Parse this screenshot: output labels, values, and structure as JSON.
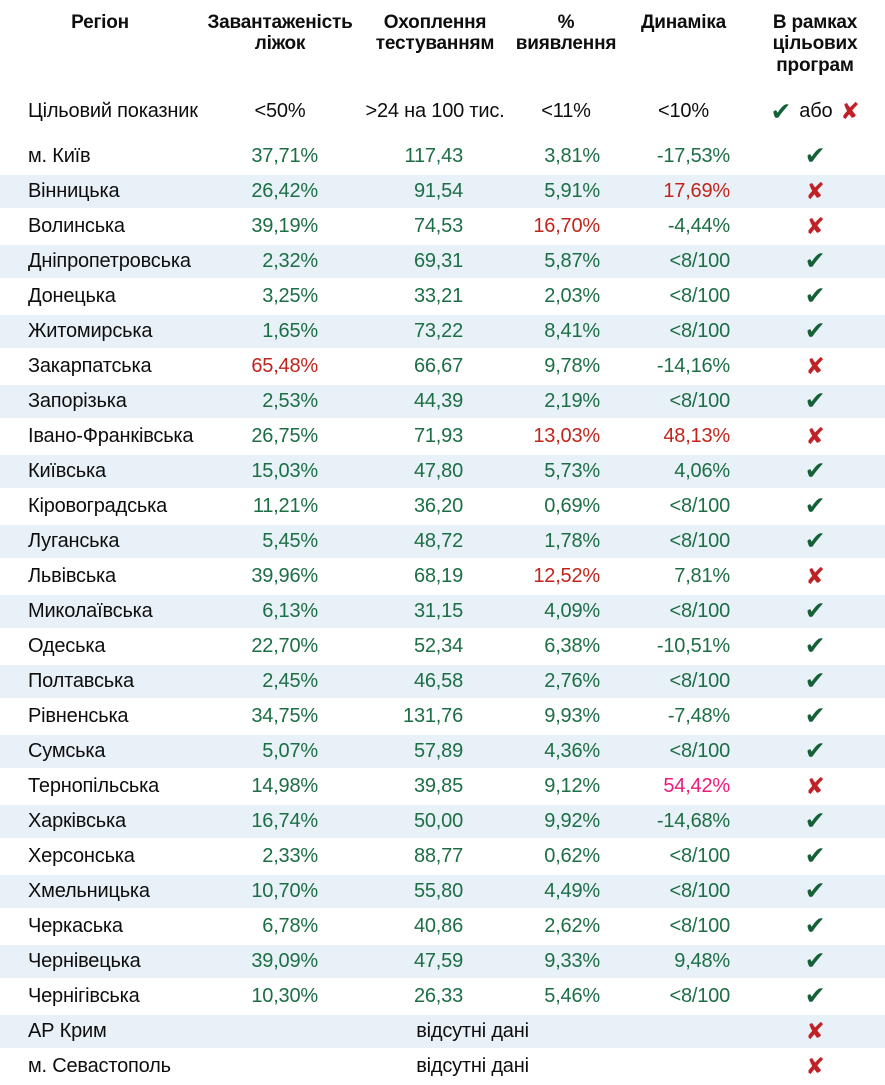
{
  "colors": {
    "value_green": "#1c6e44",
    "value_red": "#c0251c",
    "value_pink": "#ec1a78",
    "check_green": "#166038",
    "cross_red": "#c02127",
    "stripe_blue": "#e9f1f8",
    "text_black": "#0e0e0e"
  },
  "table": {
    "headers": [
      "Регіон",
      "Завантаженість\nліжок",
      "Охоплення\nтестуванням",
      "%\nвиявлення",
      "Динаміка",
      "В рамках\nцільових\nпрограм"
    ],
    "target": {
      "label": "Цільовий показник",
      "values": [
        "<50%",
        ">24 на 100 тис.",
        "<11%",
        "<10%"
      ],
      "pass_icon": "✔",
      "or_text": "або",
      "fail_icon": "✘"
    },
    "icons": {
      "pass": "✔",
      "fail": "✘"
    },
    "no_data_text": "відсутні дані",
    "rows": [
      {
        "region": "м. Київ",
        "values": [
          {
            "text": "37,71%",
            "color": "green"
          },
          {
            "text": "117,43",
            "color": "green"
          },
          {
            "text": "3,81%",
            "color": "green"
          },
          {
            "text": "-17,53%",
            "color": "green"
          }
        ],
        "status": "pass"
      },
      {
        "region": "Вінницька",
        "values": [
          {
            "text": "26,42%",
            "color": "green"
          },
          {
            "text": "91,54",
            "color": "green"
          },
          {
            "text": "5,91%",
            "color": "green"
          },
          {
            "text": "17,69%",
            "color": "red"
          }
        ],
        "status": "fail"
      },
      {
        "region": "Волинська",
        "values": [
          {
            "text": "39,19%",
            "color": "green"
          },
          {
            "text": "74,53",
            "color": "green"
          },
          {
            "text": "16,70%",
            "color": "red"
          },
          {
            "text": "-4,44%",
            "color": "green"
          }
        ],
        "status": "fail"
      },
      {
        "region": "Дніпропетровська",
        "values": [
          {
            "text": "2,32%",
            "color": "green"
          },
          {
            "text": "69,31",
            "color": "green"
          },
          {
            "text": "5,87%",
            "color": "green"
          },
          {
            "text": "<8/100",
            "color": "green"
          }
        ],
        "status": "pass"
      },
      {
        "region": "Донецька",
        "values": [
          {
            "text": "3,25%",
            "color": "green"
          },
          {
            "text": "33,21",
            "color": "green"
          },
          {
            "text": "2,03%",
            "color": "green"
          },
          {
            "text": "<8/100",
            "color": "green"
          }
        ],
        "status": "pass"
      },
      {
        "region": "Житомирська",
        "values": [
          {
            "text": "1,65%",
            "color": "green"
          },
          {
            "text": "73,22",
            "color": "green"
          },
          {
            "text": "8,41%",
            "color": "green"
          },
          {
            "text": "<8/100",
            "color": "green"
          }
        ],
        "status": "pass"
      },
      {
        "region": "Закарпатська",
        "values": [
          {
            "text": "65,48%",
            "color": "red"
          },
          {
            "text": "66,67",
            "color": "green"
          },
          {
            "text": "9,78%",
            "color": "green"
          },
          {
            "text": "-14,16%",
            "color": "green"
          }
        ],
        "status": "fail"
      },
      {
        "region": "Запорізька",
        "values": [
          {
            "text": "2,53%",
            "color": "green"
          },
          {
            "text": "44,39",
            "color": "green"
          },
          {
            "text": "2,19%",
            "color": "green"
          },
          {
            "text": "<8/100",
            "color": "green"
          }
        ],
        "status": "pass"
      },
      {
        "region": "Івано-Франківська",
        "values": [
          {
            "text": "26,75%",
            "color": "green"
          },
          {
            "text": "71,93",
            "color": "green"
          },
          {
            "text": "13,03%",
            "color": "red"
          },
          {
            "text": "48,13%",
            "color": "red"
          }
        ],
        "status": "fail"
      },
      {
        "region": "Київська",
        "values": [
          {
            "text": "15,03%",
            "color": "green"
          },
          {
            "text": "47,80",
            "color": "green"
          },
          {
            "text": "5,73%",
            "color": "green"
          },
          {
            "text": "4,06%",
            "color": "green"
          }
        ],
        "status": "pass"
      },
      {
        "region": "Кіровоградська",
        "values": [
          {
            "text": "11,21%",
            "color": "green"
          },
          {
            "text": "36,20",
            "color": "green"
          },
          {
            "text": "0,69%",
            "color": "green"
          },
          {
            "text": "<8/100",
            "color": "green"
          }
        ],
        "status": "pass"
      },
      {
        "region": "Луганська",
        "values": [
          {
            "text": "5,45%",
            "color": "green"
          },
          {
            "text": "48,72",
            "color": "green"
          },
          {
            "text": "1,78%",
            "color": "green"
          },
          {
            "text": "<8/100",
            "color": "green"
          }
        ],
        "status": "pass"
      },
      {
        "region": "Львівська",
        "values": [
          {
            "text": "39,96%",
            "color": "green"
          },
          {
            "text": "68,19",
            "color": "green"
          },
          {
            "text": "12,52%",
            "color": "red"
          },
          {
            "text": "7,81%",
            "color": "green"
          }
        ],
        "status": "fail"
      },
      {
        "region": "Миколаївська",
        "values": [
          {
            "text": "6,13%",
            "color": "green"
          },
          {
            "text": "31,15",
            "color": "green"
          },
          {
            "text": "4,09%",
            "color": "green"
          },
          {
            "text": "<8/100",
            "color": "green"
          }
        ],
        "status": "pass"
      },
      {
        "region": "Одеська",
        "values": [
          {
            "text": "22,70%",
            "color": "green"
          },
          {
            "text": "52,34",
            "color": "green"
          },
          {
            "text": "6,38%",
            "color": "green"
          },
          {
            "text": "-10,51%",
            "color": "green"
          }
        ],
        "status": "pass"
      },
      {
        "region": "Полтавська",
        "values": [
          {
            "text": "2,45%",
            "color": "green"
          },
          {
            "text": "46,58",
            "color": "green"
          },
          {
            "text": "2,76%",
            "color": "green"
          },
          {
            "text": "<8/100",
            "color": "green"
          }
        ],
        "status": "pass"
      },
      {
        "region": "Рівненська",
        "values": [
          {
            "text": "34,75%",
            "color": "green"
          },
          {
            "text": "131,76",
            "color": "green"
          },
          {
            "text": "9,93%",
            "color": "green"
          },
          {
            "text": "-7,48%",
            "color": "green"
          }
        ],
        "status": "pass"
      },
      {
        "region": "Сумська",
        "values": [
          {
            "text": "5,07%",
            "color": "green"
          },
          {
            "text": "57,89",
            "color": "green"
          },
          {
            "text": "4,36%",
            "color": "green"
          },
          {
            "text": "<8/100",
            "color": "green"
          }
        ],
        "status": "pass"
      },
      {
        "region": "Тернопільська",
        "values": [
          {
            "text": "14,98%",
            "color": "green"
          },
          {
            "text": "39,85",
            "color": "green"
          },
          {
            "text": "9,12%",
            "color": "green"
          },
          {
            "text": "54,42%",
            "color": "pink"
          }
        ],
        "status": "fail"
      },
      {
        "region": "Харківська",
        "values": [
          {
            "text": "16,74%",
            "color": "green"
          },
          {
            "text": "50,00",
            "color": "green"
          },
          {
            "text": "9,92%",
            "color": "green"
          },
          {
            "text": "-14,68%",
            "color": "green"
          }
        ],
        "status": "pass"
      },
      {
        "region": "Херсонська",
        "values": [
          {
            "text": "2,33%",
            "color": "green"
          },
          {
            "text": "88,77",
            "color": "green"
          },
          {
            "text": "0,62%",
            "color": "green"
          },
          {
            "text": "<8/100",
            "color": "green"
          }
        ],
        "status": "pass"
      },
      {
        "region": "Хмельницька",
        "values": [
          {
            "text": "10,70%",
            "color": "green"
          },
          {
            "text": "55,80",
            "color": "green"
          },
          {
            "text": "4,49%",
            "color": "green"
          },
          {
            "text": "<8/100",
            "color": "green"
          }
        ],
        "status": "pass"
      },
      {
        "region": "Черкаська",
        "values": [
          {
            "text": "6,78%",
            "color": "green"
          },
          {
            "text": "40,86",
            "color": "green"
          },
          {
            "text": "2,62%",
            "color": "green"
          },
          {
            "text": "<8/100",
            "color": "green"
          }
        ],
        "status": "pass"
      },
      {
        "region": "Чернівецька",
        "values": [
          {
            "text": "39,09%",
            "color": "green"
          },
          {
            "text": "47,59",
            "color": "green"
          },
          {
            "text": "9,33%",
            "color": "green"
          },
          {
            "text": "9,48%",
            "color": "green"
          }
        ],
        "status": "pass"
      },
      {
        "region": "Чернігівська",
        "values": [
          {
            "text": "10,30%",
            "color": "green"
          },
          {
            "text": "26,33",
            "color": "green"
          },
          {
            "text": "5,46%",
            "color": "green"
          },
          {
            "text": "<8/100",
            "color": "green"
          }
        ],
        "status": "pass"
      },
      {
        "region": "АР Крим",
        "no_data": true,
        "status": "fail"
      },
      {
        "region": "м. Севастополь",
        "no_data": true,
        "status": "fail"
      }
    ]
  }
}
